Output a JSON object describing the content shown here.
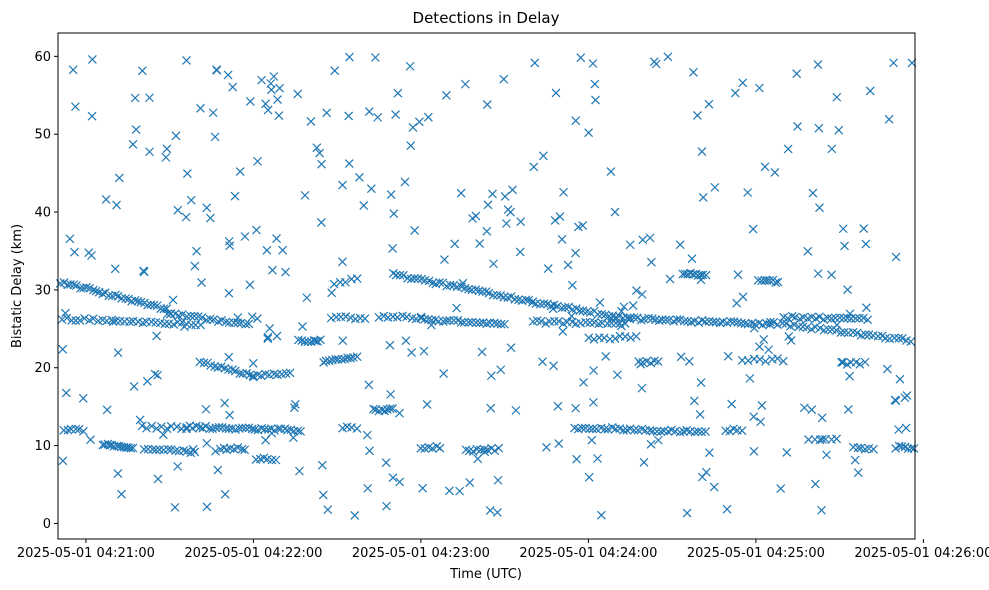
{
  "chart_data": {
    "type": "scatter",
    "title": "Detections in Delay",
    "xlabel": "Time (UTC)",
    "ylabel": "Bistatic Delay (km)",
    "marker": "x",
    "color": "#1f77b4",
    "grid": false,
    "xlim": [
      "2025-05-01 04:20:55",
      "2025-05-01 04:26:02"
    ],
    "ylim": [
      -2,
      63
    ],
    "xticks": [
      {
        "t": 65,
        "label": "2025-05-01 04:21:00"
      },
      {
        "t": 125,
        "label": "2025-05-01 04:22:00"
      },
      {
        "t": 185,
        "label": "2025-05-01 04:23:00"
      },
      {
        "t": 245,
        "label": "2025-05-01 04:24:00"
      },
      {
        "t": 305,
        "label": "2025-05-01 04:25:00"
      },
      {
        "t": 365,
        "label": "2025-05-01 04:26:00"
      }
    ],
    "yticks": [
      0,
      10,
      20,
      30,
      40,
      50,
      60
    ],
    "time_origin": "2025-05-01 04:20:00",
    "x_range_seconds": [
      55,
      363
    ],
    "tracks": [
      {
        "x0": 56.0,
        "x1": 94.0,
        "y0": 31.0,
        "y1": 27.5,
        "n": 34
      },
      {
        "x0": 94.0,
        "x1": 123.5,
        "y0": 27.0,
        "y1": 25.5,
        "n": 22
      },
      {
        "x0": 56.5,
        "x1": 106.0,
        "y0": 26.3,
        "y1": 25.6,
        "n": 32
      },
      {
        "x0": 106.0,
        "x1": 125.0,
        "y0": 20.8,
        "y1": 18.9,
        "n": 16
      },
      {
        "x0": 125.0,
        "x1": 138.0,
        "y0": 18.9,
        "y1": 19.3,
        "n": 10
      },
      {
        "x0": 141.0,
        "x1": 149.0,
        "y0": 23.5,
        "y1": 23.5,
        "n": 8
      },
      {
        "x0": 150.0,
        "x1": 162.0,
        "y0": 20.8,
        "y1": 21.5,
        "n": 12
      },
      {
        "x0": 154.0,
        "x1": 162.0,
        "y0": 30.6,
        "y1": 31.6,
        "n": 5
      },
      {
        "x0": 153.0,
        "x1": 165.0,
        "y0": 26.5,
        "y1": 26.4,
        "n": 8
      },
      {
        "x0": 175.0,
        "x1": 225.0,
        "y0": 32.0,
        "y1": 28.5,
        "n": 40
      },
      {
        "x0": 225.0,
        "x1": 260.0,
        "y0": 28.5,
        "y1": 26.3,
        "n": 28
      },
      {
        "x0": 170.0,
        "x1": 185.0,
        "y0": 26.6,
        "y1": 26.4,
        "n": 10
      },
      {
        "x0": 185.0,
        "x1": 215.0,
        "y0": 26.2,
        "y1": 25.7,
        "n": 24
      },
      {
        "x0": 225.0,
        "x1": 258.0,
        "y0": 25.9,
        "y1": 25.6,
        "n": 22
      },
      {
        "x0": 245.0,
        "x1": 262.0,
        "y0": 23.7,
        "y1": 24.0,
        "n": 10
      },
      {
        "x0": 260.0,
        "x1": 310.0,
        "y0": 26.3,
        "y1": 25.6,
        "n": 40
      },
      {
        "x0": 310.0,
        "x1": 362.0,
        "y0": 25.8,
        "y1": 23.4,
        "n": 36
      },
      {
        "x0": 279.0,
        "x1": 287.0,
        "y0": 32.0,
        "y1": 32.0,
        "n": 10
      },
      {
        "x0": 306.0,
        "x1": 313.0,
        "y0": 31.3,
        "y1": 31.0,
        "n": 8
      },
      {
        "x0": 315.0,
        "x1": 345.0,
        "y0": 26.5,
        "y1": 26.2,
        "n": 22
      },
      {
        "x0": 57.0,
        "x1": 64.0,
        "y0": 11.9,
        "y1": 12.0,
        "n": 6
      },
      {
        "x0": 71.0,
        "x1": 82.0,
        "y0": 10.1,
        "y1": 9.8,
        "n": 14
      },
      {
        "x0": 85.0,
        "x1": 101.0,
        "y0": 12.4,
        "y1": 12.3,
        "n": 10
      },
      {
        "x0": 86.0,
        "x1": 104.0,
        "y0": 9.6,
        "y1": 9.1,
        "n": 14
      },
      {
        "x0": 101.0,
        "x1": 142.0,
        "y0": 12.4,
        "y1": 12.0,
        "n": 36
      },
      {
        "x0": 113.0,
        "x1": 122.0,
        "y0": 9.6,
        "y1": 9.6,
        "n": 8
      },
      {
        "x0": 126.0,
        "x1": 133.0,
        "y0": 8.3,
        "y1": 8.3,
        "n": 6
      },
      {
        "x0": 157.0,
        "x1": 162.0,
        "y0": 12.3,
        "y1": 12.3,
        "n": 4
      },
      {
        "x0": 168.0,
        "x1": 175.0,
        "y0": 14.6,
        "y1": 14.6,
        "n": 8
      },
      {
        "x0": 185.0,
        "x1": 192.0,
        "y0": 9.8,
        "y1": 9.8,
        "n": 6
      },
      {
        "x0": 201.0,
        "x1": 213.0,
        "y0": 9.4,
        "y1": 9.5,
        "n": 10
      },
      {
        "x0": 240.0,
        "x1": 287.0,
        "y0": 12.3,
        "y1": 11.8,
        "n": 36
      },
      {
        "x0": 294.0,
        "x1": 300.0,
        "y0": 12.0,
        "y1": 12.0,
        "n": 5
      },
      {
        "x0": 324.0,
        "x1": 334.0,
        "y0": 10.8,
        "y1": 10.8,
        "n": 6
      },
      {
        "x0": 340.0,
        "x1": 347.0,
        "y0": 9.7,
        "y1": 9.6,
        "n": 6
      },
      {
        "x0": 355.0,
        "x1": 363.0,
        "y0": 9.8,
        "y1": 9.6,
        "n": 8
      },
      {
        "x0": 356.0,
        "x1": 362.0,
        "y0": 12.2,
        "y1": 12.2,
        "n": 3
      },
      {
        "x0": 263.0,
        "x1": 270.0,
        "y0": 20.7,
        "y1": 20.8,
        "n": 6
      },
      {
        "x0": 300.0,
        "x1": 315.0,
        "y0": 21.0,
        "y1": 21.0,
        "n": 8
      },
      {
        "x0": 336.0,
        "x1": 344.0,
        "y0": 20.6,
        "y1": 20.6,
        "n": 6
      }
    ],
    "scatter_count": 360,
    "scatter_seed": 12345
  }
}
